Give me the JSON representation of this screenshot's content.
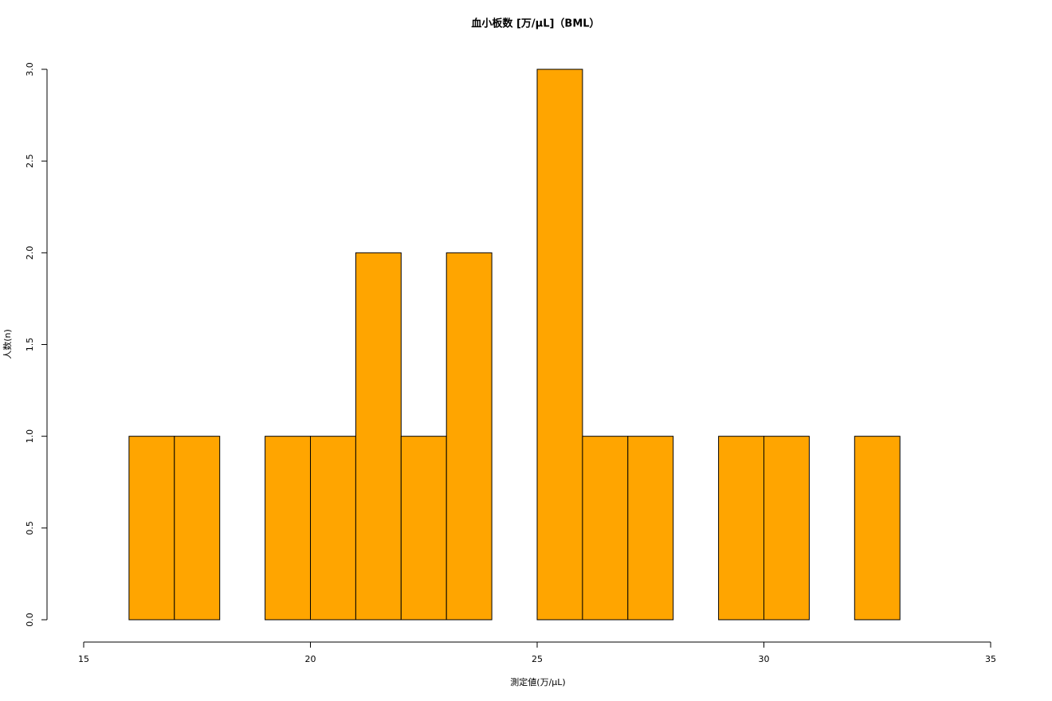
{
  "chart_data": {
    "type": "histogram",
    "title": "血小板数 [万/μL]（BML）",
    "x_label": "測定値(万/μL)",
    "y_label": "人数(n)",
    "bins": [
      16,
      17,
      18,
      19,
      20,
      21,
      22,
      23,
      24,
      25,
      26,
      27,
      28,
      29,
      30,
      31,
      32,
      33
    ],
    "values": [
      1,
      1,
      0,
      1,
      1,
      2,
      1,
      2,
      0,
      3,
      1,
      1,
      0,
      1,
      1,
      0,
      1
    ],
    "color": "#ffa500",
    "xlim": [
      15,
      35
    ],
    "xticks": [
      15,
      20,
      25,
      30,
      35
    ],
    "ylim": [
      0,
      3
    ],
    "yticks": [
      {
        "value": 0,
        "label": "0.0"
      },
      {
        "value": 0.5,
        "label": "0.5"
      },
      {
        "value": 1,
        "label": "1.0"
      },
      {
        "value": 1.5,
        "label": "1.5"
      },
      {
        "value": 2,
        "label": "2.0"
      },
      {
        "value": 2.5,
        "label": "2.5"
      },
      {
        "value": 3,
        "label": "3.0"
      }
    ]
  }
}
